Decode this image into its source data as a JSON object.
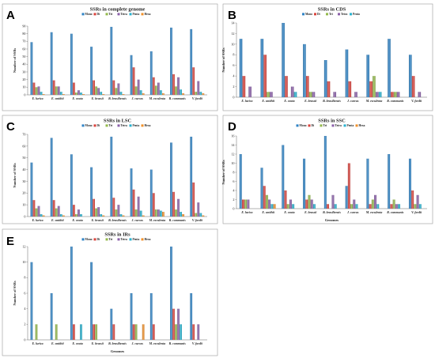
{
  "colors": {
    "Mono": "#2e83c6",
    "Di": "#d9423b",
    "Tri": "#93b94a",
    "Tetra": "#8a5fa8",
    "Penta": "#27b1cf",
    "Hexa": "#f0902a"
  },
  "chart_data": [
    {
      "letter": "A",
      "type": "bar",
      "title": "SSRs in complete genome",
      "ylabel": "Number of SSRs",
      "xlabel": "",
      "ylim": [
        0,
        90
      ],
      "yticks": [
        "0",
        "10",
        "20",
        "30",
        "40",
        "50",
        "60",
        "70",
        "80",
        "90"
      ],
      "legend_position": "top",
      "categories": [
        "E. lurica",
        "E. smithii",
        "E. ovata",
        "E. brassii",
        "B. brasiliensis",
        "J. curcas",
        "M. esculenta",
        "R. communis",
        "V. fordii"
      ],
      "series": [
        {
          "name": "Mono",
          "values": [
            69,
            82,
            80,
            63,
            89,
            52,
            57,
            88,
            86
          ]
        },
        {
          "name": "Di",
          "values": [
            16,
            19,
            16,
            19,
            19,
            36,
            23,
            27,
            36
          ]
        },
        {
          "name": "Tri",
          "values": [
            10,
            11,
            3,
            11,
            9,
            11,
            12,
            11,
            4
          ]
        },
        {
          "name": "Tetra",
          "values": [
            11,
            11,
            6,
            9,
            15,
            20,
            16,
            23,
            18
          ]
        },
        {
          "name": "Penta",
          "values": [
            4,
            4,
            3,
            4,
            4,
            6,
            6,
            7,
            4
          ]
        },
        {
          "name": "Hexa",
          "values": [
            1,
            1,
            1,
            1,
            1,
            2,
            2,
            2,
            2
          ]
        }
      ]
    },
    {
      "letter": "B",
      "type": "bar",
      "title": "SSRs in CDS",
      "ylabel": "Number of SSRs",
      "xlabel": "",
      "ylim": [
        0,
        14
      ],
      "yticks": [
        "0",
        "2",
        "4",
        "6",
        "8",
        "10",
        "12",
        "14"
      ],
      "legend_position": "top",
      "categories": [
        "E. lurica",
        "E. smithii",
        "E. ovata",
        "E. brassii",
        "B. brasiliensis",
        "J. curcas",
        "M. esculenta",
        "R. communis",
        "V. fordii"
      ],
      "series": [
        {
          "name": "Mono",
          "values": [
            11,
            11,
            14,
            10,
            7,
            9,
            8,
            11,
            8
          ]
        },
        {
          "name": "Di",
          "values": [
            4,
            8,
            4,
            4,
            3,
            3,
            3,
            1,
            4
          ]
        },
        {
          "name": "Tri",
          "values": [
            0,
            1,
            0,
            1,
            0,
            0,
            4,
            1,
            0
          ]
        },
        {
          "name": "Tetra",
          "values": [
            2,
            1,
            2,
            1,
            1,
            1,
            1,
            1,
            1
          ]
        },
        {
          "name": "Penta",
          "values": [
            0,
            0,
            1,
            0,
            0,
            0,
            1,
            0,
            0
          ]
        }
      ]
    },
    {
      "letter": "C",
      "type": "bar",
      "title": "SSRs in LSC",
      "ylabel": "Number of SSRs",
      "xlabel": "",
      "ylim": [
        0,
        70
      ],
      "yticks": [
        "0",
        "10",
        "20",
        "30",
        "40",
        "50",
        "60",
        "70"
      ],
      "legend_position": "top",
      "categories": [
        "E. lurica",
        "E. smithii",
        "E. ovata",
        "E. brassii",
        "B. brasiliensis",
        "J. curcas",
        "M. esculenta",
        "R. communis",
        "V. fordii"
      ],
      "series": [
        {
          "name": "Mono",
          "values": [
            46,
            67,
            53,
            42,
            68,
            41,
            40,
            63,
            68
          ]
        },
        {
          "name": "Di",
          "values": [
            14,
            14,
            10,
            15,
            16,
            23,
            20,
            21,
            29
          ]
        },
        {
          "name": "Tri",
          "values": [
            7,
            7,
            2,
            7,
            6,
            6,
            6,
            6,
            3
          ]
        },
        {
          "name": "Tetra",
          "values": [
            9,
            9,
            6,
            8,
            10,
            17,
            6,
            15,
            12
          ]
        },
        {
          "name": "Penta",
          "values": [
            2,
            2,
            2,
            2,
            2,
            5,
            5,
            4,
            3
          ]
        },
        {
          "name": "Hexa",
          "values": [
            1,
            1,
            0,
            1,
            1,
            1,
            4,
            2,
            1
          ]
        }
      ]
    },
    {
      "letter": "D",
      "type": "bar",
      "title": "SSRs in SSC",
      "ylabel": "Number of SSRs",
      "xlabel": "Genomes",
      "ylim": [
        0,
        16
      ],
      "yticks": [
        "0",
        "2",
        "4",
        "6",
        "8",
        "10",
        "12",
        "14",
        "16"
      ],
      "legend_position": "top",
      "categories": [
        "E. lurica",
        "E. smithii",
        "E. ovata",
        "E. brassii",
        "B. brasiliensis",
        "J. curcas",
        "M. esculenta",
        "R. communis",
        "V. fordii"
      ],
      "series": [
        {
          "name": "Mono",
          "values": [
            12,
            9,
            14,
            11,
            16,
            5,
            11,
            12,
            11
          ]
        },
        {
          "name": "Di",
          "values": [
            2,
            5,
            4,
            2,
            1,
            10,
            1,
            1,
            4
          ]
        },
        {
          "name": "Tri",
          "values": [
            2,
            3,
            1,
            3,
            0,
            1,
            2,
            2,
            1
          ]
        },
        {
          "name": "Tetra",
          "values": [
            2,
            2,
            2,
            2,
            3,
            2,
            3,
            1,
            3
          ]
        },
        {
          "name": "Penta",
          "values": [
            0,
            1,
            1,
            1,
            1,
            1,
            1,
            1,
            1
          ]
        },
        {
          "name": "Hexa",
          "values": [
            0,
            1,
            0,
            0,
            0,
            0,
            0,
            0,
            0
          ]
        }
      ]
    },
    {
      "letter": "E",
      "type": "bar",
      "title": "SSRs in IRs",
      "ylabel": "Number of SSRs",
      "xlabel": "Genomes",
      "ylim": [
        0,
        12
      ],
      "yticks": [
        "0",
        "2",
        "4",
        "6",
        "8",
        "10",
        "12"
      ],
      "legend_position": "top",
      "categories": [
        "E. lurica",
        "E. smithii",
        "E. ovata",
        "E. brassii",
        "B. brasiliensis",
        "J. curcas",
        "M. esculenta",
        "R. communis",
        "V. fordii"
      ],
      "series": [
        {
          "name": "Mono",
          "values": [
            10,
            6,
            12,
            10,
            4,
            6,
            6,
            12,
            6
          ]
        },
        {
          "name": "Di",
          "values": [
            0,
            0,
            2,
            2,
            2,
            2,
            2,
            4,
            2
          ]
        },
        {
          "name": "Tri",
          "values": [
            2,
            2,
            0,
            2,
            0,
            2,
            0,
            2,
            0
          ]
        },
        {
          "name": "Tetra",
          "values": [
            0,
            0,
            0,
            0,
            0,
            0,
            0,
            4,
            2
          ]
        },
        {
          "name": "Penta",
          "values": [
            0,
            0,
            2,
            0,
            0,
            0,
            0,
            2,
            0
          ]
        },
        {
          "name": "Hexa",
          "values": [
            0,
            0,
            0,
            0,
            0,
            2,
            0,
            0,
            0
          ]
        }
      ]
    }
  ]
}
